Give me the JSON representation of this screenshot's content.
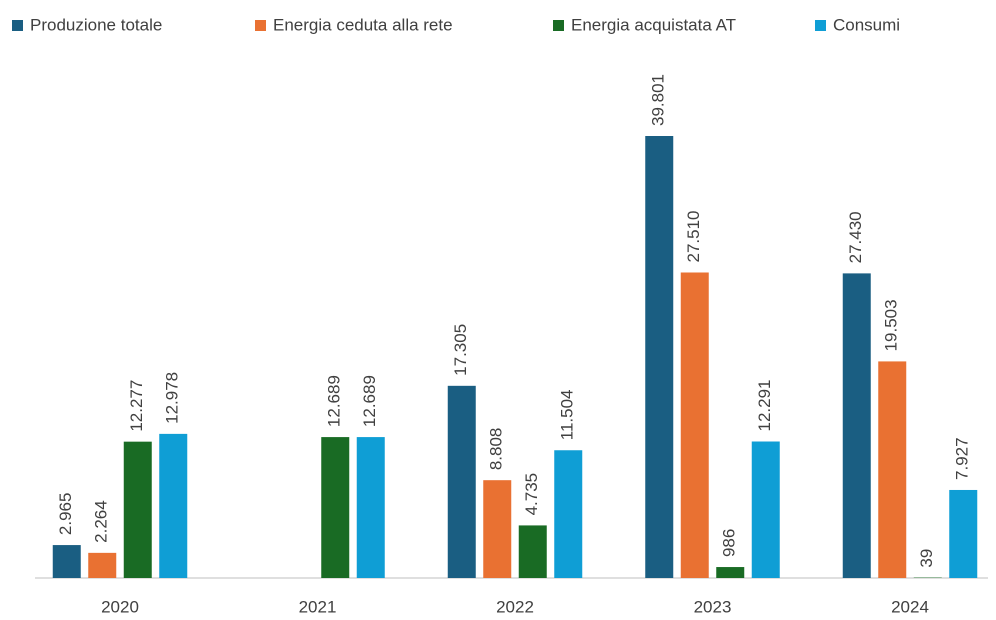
{
  "chart_data": {
    "type": "bar",
    "categories": [
      "2020",
      "2021",
      "2022",
      "2023",
      "2024"
    ],
    "series": [
      {
        "name": "Produzione totale",
        "color": "#1a5e82",
        "values": [
          2965,
          null,
          17305,
          39801,
          27430
        ],
        "value_labels": [
          "2.965",
          null,
          "17.305",
          "39.801",
          "27.430"
        ]
      },
      {
        "name": "Energia ceduta alla rete",
        "color": "#e97132",
        "values": [
          2264,
          null,
          8808,
          27510,
          19503
        ],
        "value_labels": [
          "2.264",
          null,
          "8.808",
          "27.510",
          "19.503"
        ]
      },
      {
        "name": "Energia acquistata AT",
        "color": "#196b24",
        "values": [
          12277,
          12689,
          4735,
          986,
          39
        ],
        "value_labels": [
          "12.277",
          "12.689",
          "4.735",
          "986",
          "39"
        ]
      },
      {
        "name": "Consumi",
        "color": "#0f9ed5",
        "values": [
          12978,
          12689,
          11504,
          12291,
          7927
        ],
        "value_labels": [
          "12.978",
          "12.689",
          "11.504",
          "12.291",
          "7.927"
        ]
      }
    ],
    "legend": "top"
  }
}
